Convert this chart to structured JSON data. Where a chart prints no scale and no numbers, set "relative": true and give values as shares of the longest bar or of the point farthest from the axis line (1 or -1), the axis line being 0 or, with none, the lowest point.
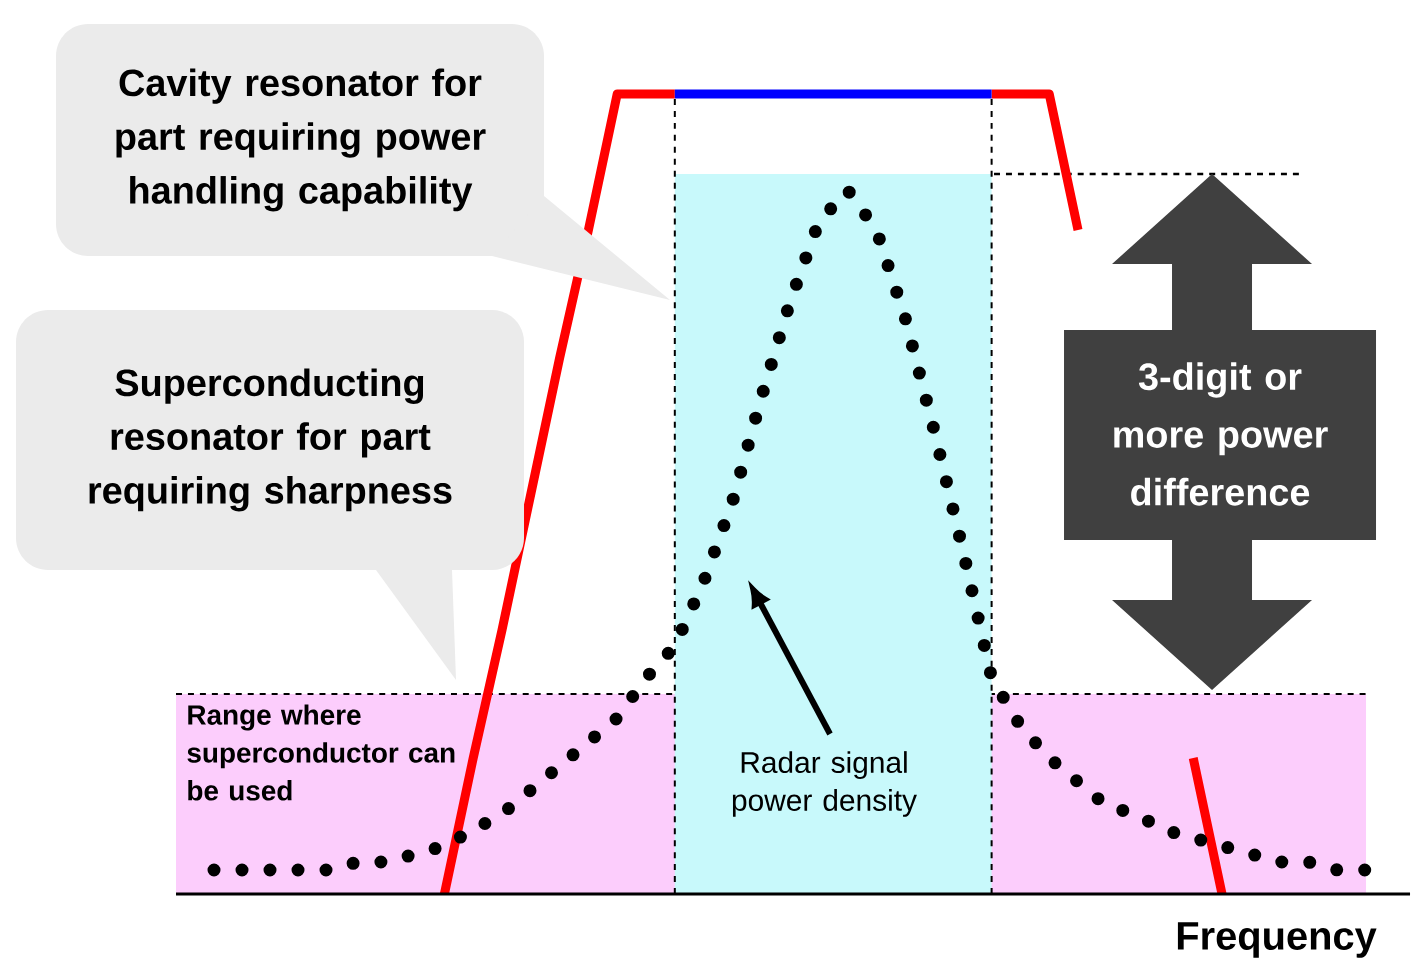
{
  "chart_data": {
    "type": "line",
    "relative": true,
    "xlabel": "Frequency",
    "tick_labels": false,
    "categories": [
      null,
      null,
      null,
      null,
      null,
      null,
      null,
      null,
      null,
      null,
      null,
      null,
      null,
      null,
      null,
      null,
      null,
      null,
      null,
      null,
      null,
      null,
      null,
      null,
      null,
      null,
      null,
      null,
      null,
      null,
      null,
      null,
      null,
      null,
      null,
      null,
      null,
      null,
      null,
      null,
      null
    ],
    "series": [
      {
        "type": "area",
        "color": "#c8f9fb",
        "values": [
          null,
          null,
          null,
          null,
          null,
          null,
          null,
          null,
          null,
          null,
          null,
          null,
          null,
          null,
          null,
          null,
          0.9,
          0.9,
          0.9,
          0.9,
          0.9,
          0.9,
          0.9,
          0.9,
          0.9,
          0.9,
          0.9,
          0.9,
          null,
          null,
          null,
          null,
          null,
          null,
          null,
          null,
          null,
          null,
          null,
          null,
          null
        ]
      },
      {
        "color": "#ff0000",
        "values": [
          null,
          null,
          null,
          null,
          null,
          null,
          null,
          null,
          0,
          0.17,
          0.33,
          0.5,
          0.67,
          0.83,
          1,
          1,
          1,
          null,
          null,
          null,
          null,
          null,
          null,
          null,
          null,
          null,
          null,
          1,
          1,
          1,
          0.83,
          null,
          null,
          null,
          0.17,
          0,
          null,
          null,
          null,
          null,
          null
        ]
      },
      {
        "color": "#0000ff",
        "values": [
          null,
          null,
          null,
          null,
          null,
          null,
          null,
          null,
          null,
          null,
          null,
          null,
          null,
          null,
          null,
          null,
          1,
          1,
          1,
          1,
          1,
          1,
          1,
          1,
          1,
          1,
          1,
          1,
          null,
          null,
          null,
          null,
          null,
          null,
          null,
          null,
          null,
          null,
          null,
          null,
          null
        ]
      },
      {
        "name": "Radar signal power density",
        "color": "#000000",
        "line_style": "dotted",
        "values": [
          0.03,
          0.03,
          0.03,
          0.03,
          0.03,
          0.04,
          0.04,
          0.05,
          0.06,
          0.08,
          0.1,
          0.13,
          0.16,
          0.19,
          0.22,
          0.27,
          0.31,
          0.39,
          0.49,
          0.62,
          0.74,
          0.84,
          0.88,
          0.83,
          0.72,
          0.58,
          0.43,
          0.27,
          0.21,
          0.17,
          0.14,
          0.11,
          0.1,
          0.08,
          0.07,
          0.06,
          0.05,
          0.04,
          0.04,
          0.03,
          0.03
        ]
      }
    ],
    "bands": [
      {
        "axis": "y",
        "from": 0,
        "to": 0.25,
        "label": "Range where superconductor can be used",
        "color": "#fccdfc"
      }
    ],
    "ref_lines": [
      {
        "axis": "y",
        "value": 0.9,
        "line_style": "dashed",
        "color": "#000000"
      }
    ],
    "annotations": [
      "Cavity resonator for part requiring power handling capability",
      "Superconducting resonator for part requiring sharpness",
      "3-digit or more power difference"
    ]
  }
}
